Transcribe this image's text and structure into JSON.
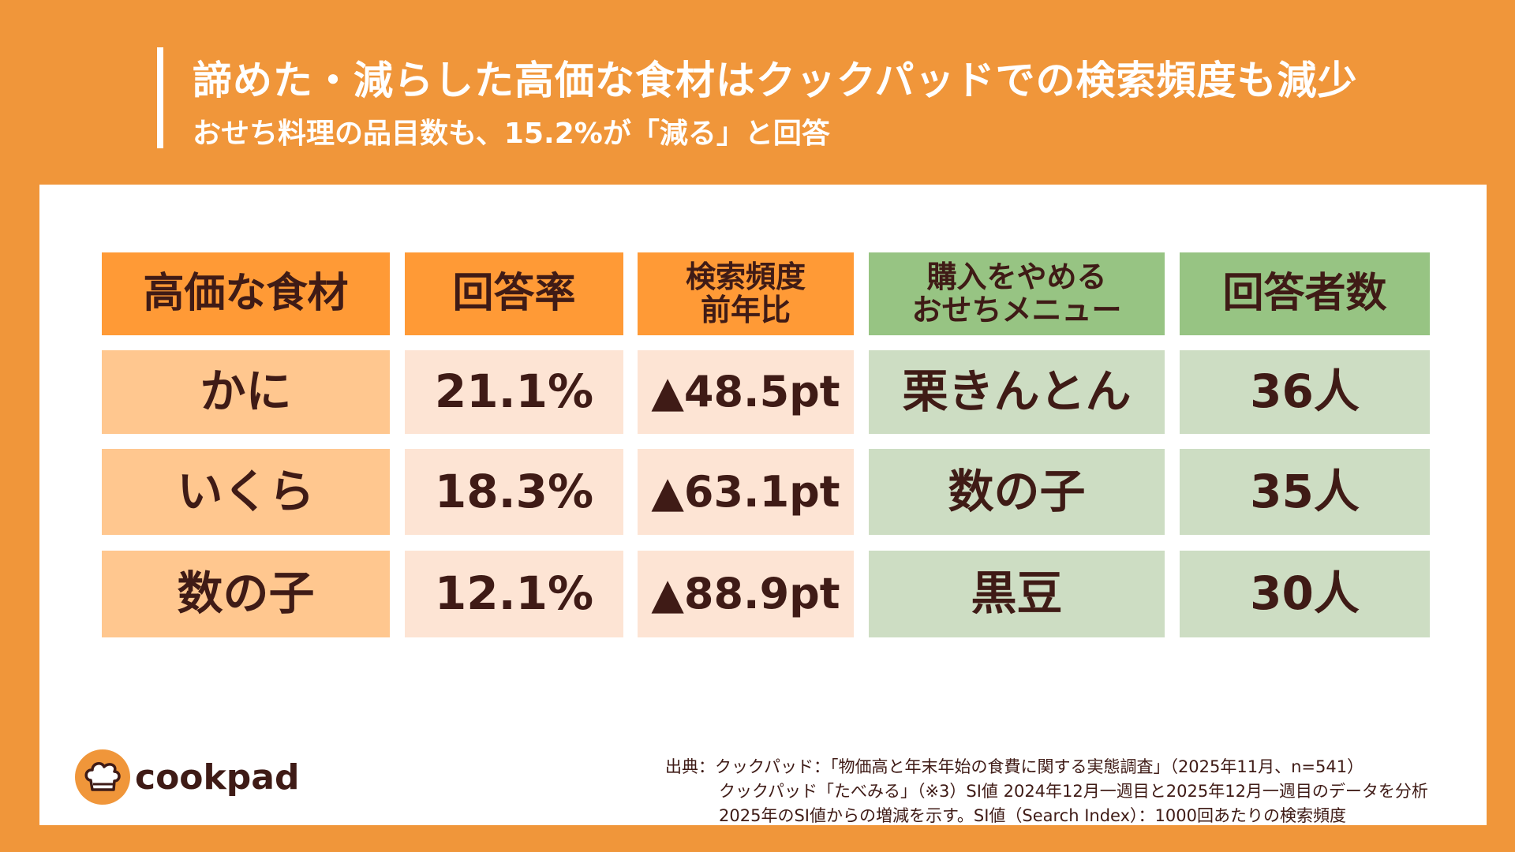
{
  "title": "諦めた・減らした高価な食材はクックパッドでの検索頻度も減少",
  "subtitle": "おせち料理の品目数も、15.2%が「減る」と回答",
  "table": {
    "headers": [
      "高価な食材",
      "回答率",
      "検索頻度\n前年比",
      "購入をやめる\nおせちメニュー",
      "回答者数"
    ],
    "rows": [
      [
        "かに",
        "21.1%",
        "▲48.5pt",
        "栗きんとん",
        "36人"
      ],
      [
        "いくら",
        "18.3%",
        "▲63.1pt",
        "数の子",
        "35人"
      ],
      [
        "数の子",
        "12.1%",
        "▲88.9pt",
        "黒豆",
        "30人"
      ]
    ]
  },
  "logo": {
    "text": "cookpad"
  },
  "footer": [
    "出典：クックパッド：「物価高と年末年始の食費に関する実態調査」（2025年11月、n=541）",
    "クックパッド「たべみる」（※3）SI値 2024年12月一週目と2025年12月一週目のデータを分析",
    "2025年のSI値からの増減を示す。SI値（Search Index）：1000回あたりの検索頻度"
  ]
}
